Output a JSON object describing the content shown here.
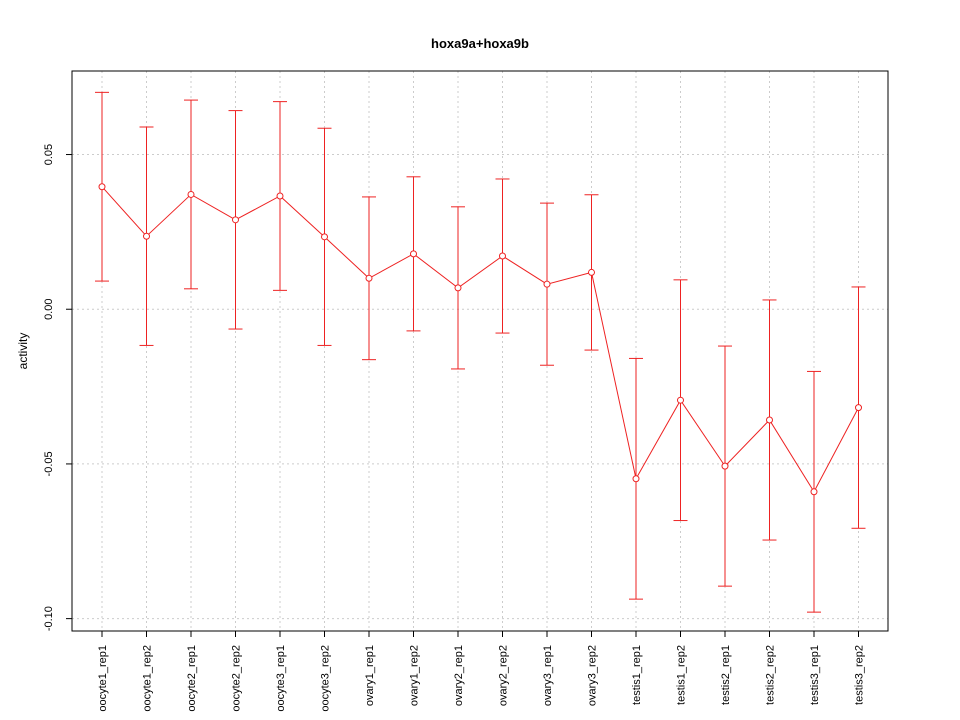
{
  "chart_data": {
    "type": "line",
    "title": "hoxa9a+hoxa9b",
    "xlabel": "",
    "ylabel": "activity",
    "ylim": [
      -0.104,
      0.077
    ],
    "yticks": [
      -0.1,
      -0.05,
      0.0,
      0.05
    ],
    "ytick_labels": [
      "-0.10",
      "-0.05",
      "0.00",
      "0.05"
    ],
    "grid": true,
    "color": "#ee2222",
    "categories": [
      "oocyte1_rep1",
      "oocyte1_rep2",
      "oocyte2_rep1",
      "oocyte2_rep2",
      "oocyte3_rep1",
      "oocyte3_rep2",
      "ovary1_rep1",
      "ovary1_rep2",
      "ovary2_rep1",
      "ovary2_rep2",
      "ovary3_rep1",
      "ovary3_rep2",
      "testis1_rep1",
      "testis1_rep2",
      "testis2_rep1",
      "testis2_rep2",
      "testis3_rep1",
      "testis3_rep2"
    ],
    "values": [
      0.0396,
      0.0236,
      0.0371,
      0.0289,
      0.0366,
      0.0234,
      0.01,
      0.0179,
      0.0069,
      0.0172,
      0.0081,
      0.0119,
      -0.0548,
      -0.0294,
      -0.0507,
      -0.0358,
      -0.059,
      -0.0318
    ],
    "upper": [
      0.0701,
      0.0589,
      0.0676,
      0.0642,
      0.0671,
      0.0585,
      0.0363,
      0.0428,
      0.0331,
      0.0421,
      0.0343,
      0.037,
      -0.0159,
      0.0095,
      -0.0119,
      0.003,
      -0.0201,
      0.0072
    ],
    "lower": [
      0.0091,
      -0.0117,
      0.0066,
      -0.0064,
      0.0061,
      -0.0117,
      -0.0163,
      -0.007,
      -0.0193,
      -0.0077,
      -0.0181,
      -0.0132,
      -0.0937,
      -0.0683,
      -0.0895,
      -0.0746,
      -0.0979,
      -0.0708
    ]
  }
}
